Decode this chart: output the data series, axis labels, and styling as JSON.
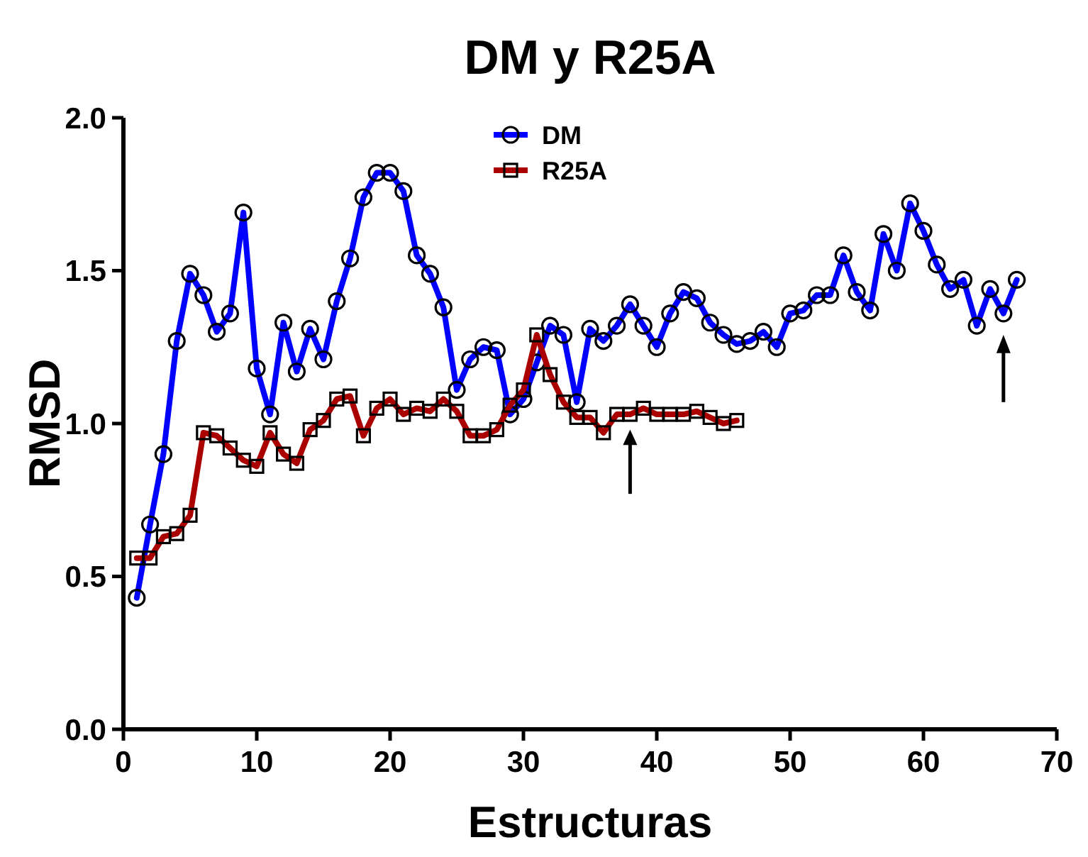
{
  "chart_data": {
    "type": "line",
    "title": "DM y R25A",
    "xlabel": "Estructuras",
    "ylabel": "RMSD",
    "xlim": [
      0,
      70
    ],
    "xticks": [
      0,
      10,
      20,
      30,
      40,
      50,
      60,
      70
    ],
    "ylim": [
      0,
      2
    ],
    "yticks": [
      {
        "value": 0,
        "label": "0.0"
      },
      {
        "value": 0.5,
        "label": "0.5"
      },
      {
        "value": 1,
        "label": "1.0"
      },
      {
        "value": 1.5,
        "label": "1.5"
      },
      {
        "value": 2,
        "label": "2.0"
      }
    ],
    "grid": false,
    "legend": "top",
    "line_style": "solid",
    "series": [
      {
        "name": "DM",
        "color": "#0000ff",
        "marker": "circle",
        "x": [
          1,
          2,
          3,
          4,
          5,
          6,
          7,
          8,
          9,
          10,
          11,
          12,
          13,
          14,
          15,
          16,
          17,
          18,
          19,
          20,
          21,
          22,
          23,
          24,
          25,
          26,
          27,
          28,
          29,
          30,
          31,
          32,
          33,
          34,
          35,
          36,
          37,
          38,
          39,
          40,
          41,
          42,
          43,
          44,
          45,
          46,
          47,
          48,
          49,
          50,
          51,
          52,
          53,
          54,
          55,
          56,
          57,
          58,
          59,
          60,
          61,
          62,
          63,
          64,
          65,
          66,
          67
        ],
        "values": [
          0.43,
          0.67,
          0.9,
          1.27,
          1.49,
          1.42,
          1.3,
          1.36,
          1.69,
          1.18,
          1.03,
          1.33,
          1.17,
          1.31,
          1.21,
          1.4,
          1.54,
          1.74,
          1.82,
          1.82,
          1.76,
          1.55,
          1.49,
          1.38,
          1.11,
          1.21,
          1.25,
          1.24,
          1.03,
          1.08,
          1.2,
          1.32,
          1.29,
          1.07,
          1.31,
          1.27,
          1.32,
          1.39,
          1.32,
          1.25,
          1.36,
          1.43,
          1.41,
          1.33,
          1.29,
          1.26,
          1.27,
          1.3,
          1.25,
          1.36,
          1.37,
          1.42,
          1.42,
          1.55,
          1.43,
          1.37,
          1.62,
          1.5,
          1.72,
          1.63,
          1.52,
          1.44,
          1.47,
          1.32,
          1.44,
          1.36,
          1.47
        ]
      },
      {
        "name": "R25A",
        "color": "#aa0000",
        "marker": "square",
        "x": [
          1,
          2,
          3,
          4,
          5,
          6,
          7,
          8,
          9,
          10,
          11,
          12,
          13,
          14,
          15,
          16,
          17,
          18,
          19,
          20,
          21,
          22,
          23,
          24,
          25,
          26,
          27,
          28,
          29,
          30,
          31,
          32,
          33,
          34,
          35,
          36,
          37,
          38,
          39,
          40,
          41,
          42,
          43,
          44,
          45,
          46
        ],
        "values": [
          0.56,
          0.56,
          0.63,
          0.64,
          0.7,
          0.97,
          0.96,
          0.92,
          0.88,
          0.86,
          0.97,
          0.9,
          0.87,
          0.98,
          1.01,
          1.08,
          1.09,
          0.96,
          1.05,
          1.08,
          1.03,
          1.05,
          1.04,
          1.08,
          1.04,
          0.96,
          0.96,
          0.98,
          1.06,
          1.11,
          1.29,
          1.16,
          1.07,
          1.02,
          1.02,
          0.97,
          1.03,
          1.03,
          1.05,
          1.03,
          1.03,
          1.03,
          1.04,
          1.02,
          1.0,
          1.01
        ]
      }
    ]
  }
}
